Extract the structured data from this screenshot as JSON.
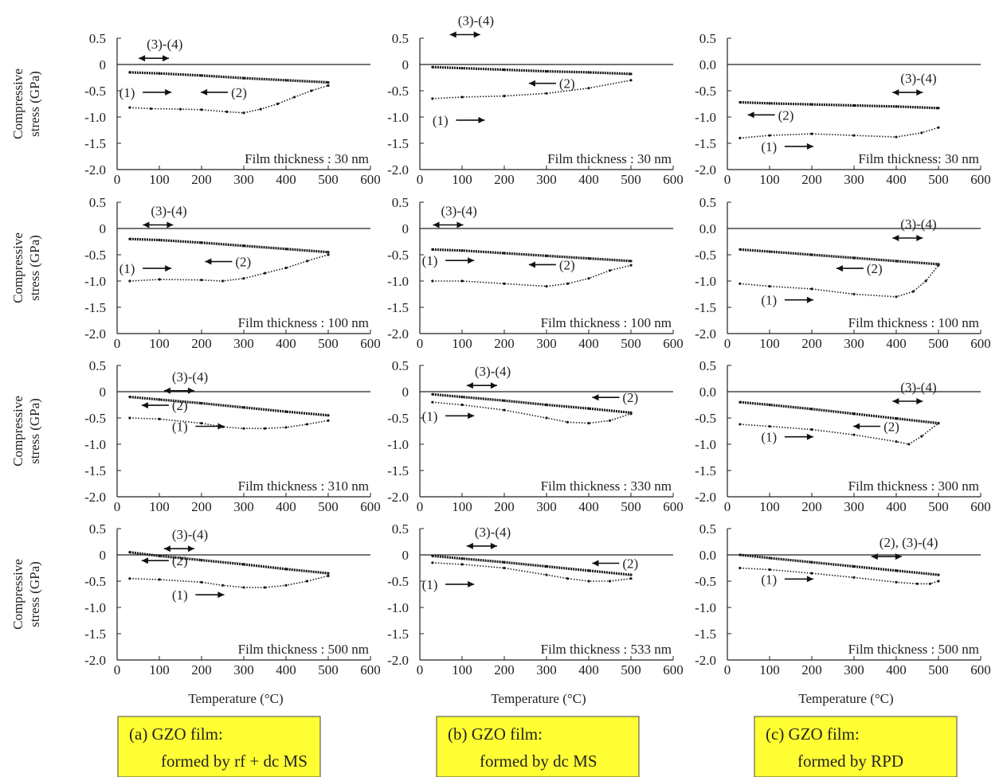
{
  "figure": {
    "y_axis_label_line1": "Compressive",
    "y_axis_label_line2": "stress (GPa)",
    "x_axis_label": "Temperature (°C)",
    "colors": {
      "curve": "#1a1a1a",
      "caption_box": "#ffff33"
    },
    "captions": [
      {
        "line1": "(a)  GZO film:",
        "line2": "formed by rf + dc MS"
      },
      {
        "line1": "(b) GZO film:",
        "line2": "formed by dc MS"
      },
      {
        "line1": "(c) GZO film:",
        "line2": "formed by RPD"
      }
    ]
  },
  "chart_data": [
    {
      "type": "line",
      "panel": "(a) row 1",
      "annotation": "Film thickness : 30 nm",
      "x_ticks": [
        "0",
        "100",
        "200",
        "300",
        "400",
        "500",
        "600"
      ],
      "y_ticks": [
        "0.5",
        "0",
        "-0.5",
        "-1.0",
        "-1.5",
        "-2.0"
      ],
      "xlim": [
        0,
        600
      ],
      "ylim": [
        -2.0,
        0.5
      ],
      "series": [
        {
          "label": "(1)",
          "x": [
            30,
            80,
            150,
            200,
            260,
            300,
            340,
            380,
            420,
            460,
            500
          ],
          "y": [
            -0.82,
            -0.84,
            -0.85,
            -0.86,
            -0.9,
            -0.92,
            -0.85,
            -0.75,
            -0.62,
            -0.5,
            -0.4
          ]
        },
        {
          "label": "(3)-(4)",
          "x": [
            30,
            100,
            200,
            300,
            400,
            500
          ],
          "y": [
            -0.15,
            -0.17,
            -0.21,
            -0.26,
            -0.3,
            -0.34
          ]
        }
      ],
      "labels": [
        {
          "text": "(3)-(4)",
          "x": 70,
          "y": 0.3,
          "arrow": "both"
        },
        {
          "text": "(1)",
          "x": 5,
          "y": -0.62,
          "arrow": "right"
        },
        {
          "text": "(2)",
          "x": 270,
          "y": -0.62,
          "arrow": "left"
        }
      ]
    },
    {
      "type": "line",
      "panel": "(b) row 1",
      "annotation": "Film thickness : 30 nm",
      "x_ticks": [
        "0",
        "100",
        "200",
        "300",
        "400",
        "500",
        "600"
      ],
      "y_ticks": [
        "0.5",
        "0",
        "-0.5",
        "-1.0",
        "-1.5",
        "-2.0"
      ],
      "xlim": [
        0,
        600
      ],
      "ylim": [
        -2.0,
        0.5
      ],
      "series": [
        {
          "label": "(1)",
          "x": [
            30,
            100,
            200,
            300,
            400,
            500
          ],
          "y": [
            -0.65,
            -0.62,
            -0.6,
            -0.55,
            -0.45,
            -0.3
          ]
        },
        {
          "label": "(3)-(4)",
          "x": [
            30,
            100,
            200,
            300,
            400,
            500
          ],
          "y": [
            -0.05,
            -0.07,
            -0.1,
            -0.13,
            -0.15,
            -0.18
          ]
        }
      ],
      "labels": [
        {
          "text": "(3)-(4)",
          "x": 90,
          "y": 0.75,
          "arrow": "both"
        },
        {
          "text": "(1)",
          "x": 30,
          "y": -1.15,
          "arrow": "right"
        },
        {
          "text": "(2)",
          "x": 330,
          "y": -0.45,
          "arrow": "left"
        }
      ]
    },
    {
      "type": "line",
      "panel": "(c) row 1",
      "annotation": "Film thickness: 30 nm",
      "x_ticks": [
        "0",
        "100",
        "200",
        "300",
        "400",
        "500",
        "600"
      ],
      "y_ticks": [
        "0.5",
        "0.0",
        "-0.5",
        "-1.0",
        "-1.5",
        "-2.0"
      ],
      "xlim": [
        0,
        600
      ],
      "ylim": [
        -2.0,
        0.5
      ],
      "series": [
        {
          "label": "(1)",
          "x": [
            30,
            100,
            200,
            300,
            400,
            460,
            500
          ],
          "y": [
            -1.4,
            -1.35,
            -1.32,
            -1.35,
            -1.38,
            -1.3,
            -1.2
          ]
        },
        {
          "label": "(3)-(4)",
          "x": [
            30,
            100,
            200,
            300,
            400,
            500
          ],
          "y": [
            -0.72,
            -0.74,
            -0.76,
            -0.78,
            -0.8,
            -0.83
          ]
        }
      ],
      "labels": [
        {
          "text": "(3)-(4)",
          "x": 410,
          "y": -0.35,
          "arrow": "both"
        },
        {
          "text": "(2)",
          "x": 120,
          "y": -1.05,
          "arrow": "left"
        },
        {
          "text": "(1)",
          "x": 80,
          "y": -1.65,
          "arrow": "right"
        }
      ]
    },
    {
      "type": "line",
      "panel": "(a) row 2",
      "annotation": "Film thickness : 100 nm",
      "x_ticks": [
        "0",
        "100",
        "200",
        "300",
        "400",
        "500",
        "600"
      ],
      "y_ticks": [
        "0.5",
        "0",
        "-0.5",
        "-1.0",
        "-1.5",
        "-2.0"
      ],
      "xlim": [
        0,
        600
      ],
      "ylim": [
        -2.0,
        0.5
      ],
      "series": [
        {
          "label": "(1)",
          "x": [
            30,
            100,
            200,
            250,
            300,
            350,
            400,
            450,
            500
          ],
          "y": [
            -1.0,
            -0.97,
            -0.98,
            -1.0,
            -0.95,
            -0.85,
            -0.75,
            -0.62,
            -0.5
          ]
        },
        {
          "label": "(3)-(4)",
          "x": [
            30,
            100,
            200,
            300,
            400,
            500
          ],
          "y": [
            -0.2,
            -0.22,
            -0.27,
            -0.33,
            -0.39,
            -0.45
          ]
        }
      ],
      "labels": [
        {
          "text": "(3)-(4)",
          "x": 80,
          "y": 0.25,
          "arrow": "both"
        },
        {
          "text": "(1)",
          "x": 5,
          "y": -0.85,
          "arrow": "right"
        },
        {
          "text": "(2)",
          "x": 280,
          "y": -0.72,
          "arrow": "left"
        }
      ]
    },
    {
      "type": "line",
      "panel": "(b) row 2",
      "annotation": "Film thickness : 100 nm",
      "x_ticks": [
        "0",
        "100",
        "200",
        "300",
        "400",
        "500",
        "600"
      ],
      "y_ticks": [
        "0.5",
        "0",
        "-0.5",
        "-1.0",
        "-1.5",
        "-2.0"
      ],
      "xlim": [
        0,
        600
      ],
      "ylim": [
        -2.0,
        0.5
      ],
      "series": [
        {
          "label": "(1)",
          "x": [
            30,
            100,
            200,
            300,
            350,
            400,
            450,
            500
          ],
          "y": [
            -1.0,
            -1.0,
            -1.05,
            -1.1,
            -1.05,
            -0.95,
            -0.8,
            -0.7
          ]
        },
        {
          "label": "(3)-(4)",
          "x": [
            30,
            100,
            200,
            300,
            400,
            500
          ],
          "y": [
            -0.4,
            -0.42,
            -0.47,
            -0.52,
            -0.57,
            -0.62
          ]
        }
      ],
      "labels": [
        {
          "text": "(3)-(4)",
          "x": 50,
          "y": 0.25,
          "arrow": "both"
        },
        {
          "text": "(1)",
          "x": 5,
          "y": -0.7,
          "arrow": "right"
        },
        {
          "text": "(2)",
          "x": 330,
          "y": -0.78,
          "arrow": "left"
        }
      ]
    },
    {
      "type": "line",
      "panel": "(c) row 2",
      "annotation": "Film thickness : 100 nm",
      "x_ticks": [
        "0",
        "100",
        "200",
        "300",
        "400",
        "500",
        "600"
      ],
      "y_ticks": [
        "0.5",
        "0.0",
        "-0.5",
        "-1.0",
        "-1.5",
        "-2.0"
      ],
      "xlim": [
        0,
        600
      ],
      "ylim": [
        -2.0,
        0.5
      ],
      "series": [
        {
          "label": "(1)",
          "x": [
            30,
            100,
            200,
            300,
            400,
            440,
            470,
            500
          ],
          "y": [
            -1.05,
            -1.1,
            -1.15,
            -1.25,
            -1.3,
            -1.2,
            -1.0,
            -0.7
          ]
        },
        {
          "label": "(3)-(4)",
          "x": [
            30,
            100,
            200,
            300,
            400,
            500
          ],
          "y": [
            -0.4,
            -0.44,
            -0.5,
            -0.56,
            -0.62,
            -0.68
          ]
        }
      ],
      "labels": [
        {
          "text": "(3)-(4)",
          "x": 410,
          "y": 0.0,
          "arrow": "both"
        },
        {
          "text": "(2)",
          "x": 330,
          "y": -0.85,
          "arrow": "left"
        },
        {
          "text": "(1)",
          "x": 80,
          "y": -1.45,
          "arrow": "right"
        }
      ]
    },
    {
      "type": "line",
      "panel": "(a) row 3",
      "annotation": "Film thickness : 310 nm",
      "x_ticks": [
        "0",
        "100",
        "200",
        "300",
        "400",
        "500",
        "600"
      ],
      "y_ticks": [
        "0.5",
        "0",
        "-0.5",
        "-1.0",
        "-1.5",
        "-2.0"
      ],
      "xlim": [
        0,
        600
      ],
      "ylim": [
        -2.0,
        0.5
      ],
      "series": [
        {
          "label": "(1)",
          "x": [
            30,
            100,
            200,
            250,
            300,
            350,
            400,
            450,
            500
          ],
          "y": [
            -0.5,
            -0.52,
            -0.6,
            -0.67,
            -0.7,
            -0.7,
            -0.68,
            -0.62,
            -0.55
          ]
        },
        {
          "label": "(3)-(4)",
          "x": [
            30,
            100,
            200,
            300,
            400,
            500
          ],
          "y": [
            -0.1,
            -0.15,
            -0.22,
            -0.3,
            -0.38,
            -0.45
          ]
        }
      ],
      "labels": [
        {
          "text": "(3)-(4)",
          "x": 130,
          "y": 0.2,
          "arrow": "both"
        },
        {
          "text": "(2)",
          "x": 130,
          "y": -0.35,
          "arrow": "left"
        },
        {
          "text": "(1)",
          "x": 130,
          "y": -0.75,
          "arrow": "right"
        }
      ]
    },
    {
      "type": "line",
      "panel": "(b) row 3",
      "annotation": "Film thickness : 330 nm",
      "x_ticks": [
        "0",
        "100",
        "200",
        "300",
        "400",
        "500",
        "600"
      ],
      "y_ticks": [
        "0.5",
        "0",
        "-0.5",
        "-1.0",
        "-1.5",
        "-2.0"
      ],
      "xlim": [
        0,
        600
      ],
      "ylim": [
        -2.0,
        0.5
      ],
      "series": [
        {
          "label": "(1)",
          "x": [
            30,
            100,
            200,
            300,
            350,
            400,
            450,
            500
          ],
          "y": [
            -0.2,
            -0.25,
            -0.35,
            -0.5,
            -0.58,
            -0.6,
            -0.55,
            -0.42
          ]
        },
        {
          "label": "(3)-(4)",
          "x": [
            30,
            100,
            200,
            300,
            400,
            500
          ],
          "y": [
            -0.05,
            -0.1,
            -0.17,
            -0.25,
            -0.32,
            -0.4
          ]
        }
      ],
      "labels": [
        {
          "text": "(3)-(4)",
          "x": 130,
          "y": 0.3,
          "arrow": "both"
        },
        {
          "text": "(2)",
          "x": 480,
          "y": -0.2,
          "arrow": "left"
        },
        {
          "text": "(1)",
          "x": 5,
          "y": -0.55,
          "arrow": "right"
        }
      ]
    },
    {
      "type": "line",
      "panel": "(c) row 3",
      "annotation": "Film thickness : 300 nm",
      "x_ticks": [
        "0",
        "100",
        "200",
        "300",
        "400",
        "500",
        "600"
      ],
      "y_ticks": [
        "0.5",
        "0.0",
        "-0.5",
        "-1.0",
        "-1.5",
        "-2.0"
      ],
      "xlim": [
        0,
        600
      ],
      "ylim": [
        -2.0,
        0.5
      ],
      "series": [
        {
          "label": "(1)",
          "x": [
            30,
            100,
            200,
            300,
            400,
            430,
            460,
            500
          ],
          "y": [
            -0.62,
            -0.66,
            -0.72,
            -0.82,
            -0.95,
            -1.0,
            -0.85,
            -0.6
          ]
        },
        {
          "label": "(3)-(4)",
          "x": [
            30,
            100,
            200,
            300,
            400,
            500
          ],
          "y": [
            -0.2,
            -0.25,
            -0.33,
            -0.42,
            -0.51,
            -0.6
          ]
        }
      ],
      "labels": [
        {
          "text": "(3)-(4)",
          "x": 410,
          "y": 0.0,
          "arrow": "both"
        },
        {
          "text": "(2)",
          "x": 370,
          "y": -0.75,
          "arrow": "left"
        },
        {
          "text": "(1)",
          "x": 80,
          "y": -0.95,
          "arrow": "right"
        }
      ]
    },
    {
      "type": "line",
      "panel": "(a) row 4",
      "annotation": "Film thickness : 500 nm",
      "x_ticks": [
        "0",
        "100",
        "200",
        "300",
        "400",
        "500",
        "600"
      ],
      "y_ticks": [
        "0.5",
        "0",
        "-0.5",
        "-1.0",
        "-1.5",
        "-2.0"
      ],
      "xlim": [
        0,
        600
      ],
      "ylim": [
        -2.0,
        0.5
      ],
      "series": [
        {
          "label": "(1)",
          "x": [
            30,
            100,
            200,
            250,
            300,
            350,
            400,
            450,
            500
          ],
          "y": [
            -0.45,
            -0.47,
            -0.52,
            -0.58,
            -0.62,
            -0.62,
            -0.58,
            -0.5,
            -0.4
          ]
        },
        {
          "label": "(3)-(4)",
          "x": [
            30,
            100,
            200,
            300,
            400,
            500
          ],
          "y": [
            0.05,
            -0.02,
            -0.1,
            -0.18,
            -0.27,
            -0.35
          ]
        }
      ],
      "labels": [
        {
          "text": "(3)-(4)",
          "x": 130,
          "y": 0.3,
          "arrow": "both"
        },
        {
          "text": "(2)",
          "x": 130,
          "y": -0.2,
          "arrow": "left"
        },
        {
          "text": "(1)",
          "x": 130,
          "y": -0.85,
          "arrow": "right"
        }
      ]
    },
    {
      "type": "line",
      "panel": "(b) row 4",
      "annotation": "Film thickness : 533 nm",
      "x_ticks": [
        "0",
        "100",
        "200",
        "300",
        "400",
        "500",
        "600"
      ],
      "y_ticks": [
        "0.5",
        "0",
        "-0.5",
        "-1.0",
        "-1.5",
        "-2.0"
      ],
      "xlim": [
        0,
        600
      ],
      "ylim": [
        -2.0,
        0.5
      ],
      "series": [
        {
          "label": "(1)",
          "x": [
            30,
            100,
            200,
            300,
            350,
            400,
            450,
            500
          ],
          "y": [
            -0.15,
            -0.18,
            -0.25,
            -0.38,
            -0.45,
            -0.5,
            -0.5,
            -0.45
          ]
        },
        {
          "label": "(3)-(4)",
          "x": [
            30,
            100,
            200,
            300,
            400,
            500
          ],
          "y": [
            -0.02,
            -0.07,
            -0.14,
            -0.22,
            -0.3,
            -0.38
          ]
        }
      ],
      "labels": [
        {
          "text": "(3)-(4)",
          "x": 130,
          "y": 0.35,
          "arrow": "both"
        },
        {
          "text": "(2)",
          "x": 480,
          "y": -0.25,
          "arrow": "left"
        },
        {
          "text": "(1)",
          "x": 5,
          "y": -0.65,
          "arrow": "right"
        }
      ]
    },
    {
      "type": "line",
      "panel": "(c) row 4",
      "annotation": "Film thickness : 500 nm",
      "x_ticks": [
        "0",
        "100",
        "200",
        "300",
        "400",
        "500",
        "600"
      ],
      "y_ticks": [
        "0.5",
        "0.0",
        "-0.5",
        "-1.0",
        "-1.5",
        "-2.0"
      ],
      "xlim": [
        0,
        600
      ],
      "ylim": [
        -2.0,
        0.5
      ],
      "series": [
        {
          "label": "(1)",
          "x": [
            30,
            100,
            200,
            300,
            400,
            450,
            480,
            500
          ],
          "y": [
            -0.25,
            -0.28,
            -0.35,
            -0.43,
            -0.52,
            -0.55,
            -0.55,
            -0.5
          ]
        },
        {
          "label": "(2), (3)-(4)",
          "x": [
            30,
            100,
            200,
            300,
            400,
            500
          ],
          "y": [
            0.0,
            -0.06,
            -0.14,
            -0.22,
            -0.3,
            -0.38
          ]
        }
      ],
      "labels": [
        {
          "text": "(2), (3)-(4)",
          "x": 360,
          "y": 0.15,
          "arrow": "both"
        },
        {
          "text": "(1)",
          "x": 80,
          "y": -0.55,
          "arrow": "right"
        }
      ]
    }
  ]
}
